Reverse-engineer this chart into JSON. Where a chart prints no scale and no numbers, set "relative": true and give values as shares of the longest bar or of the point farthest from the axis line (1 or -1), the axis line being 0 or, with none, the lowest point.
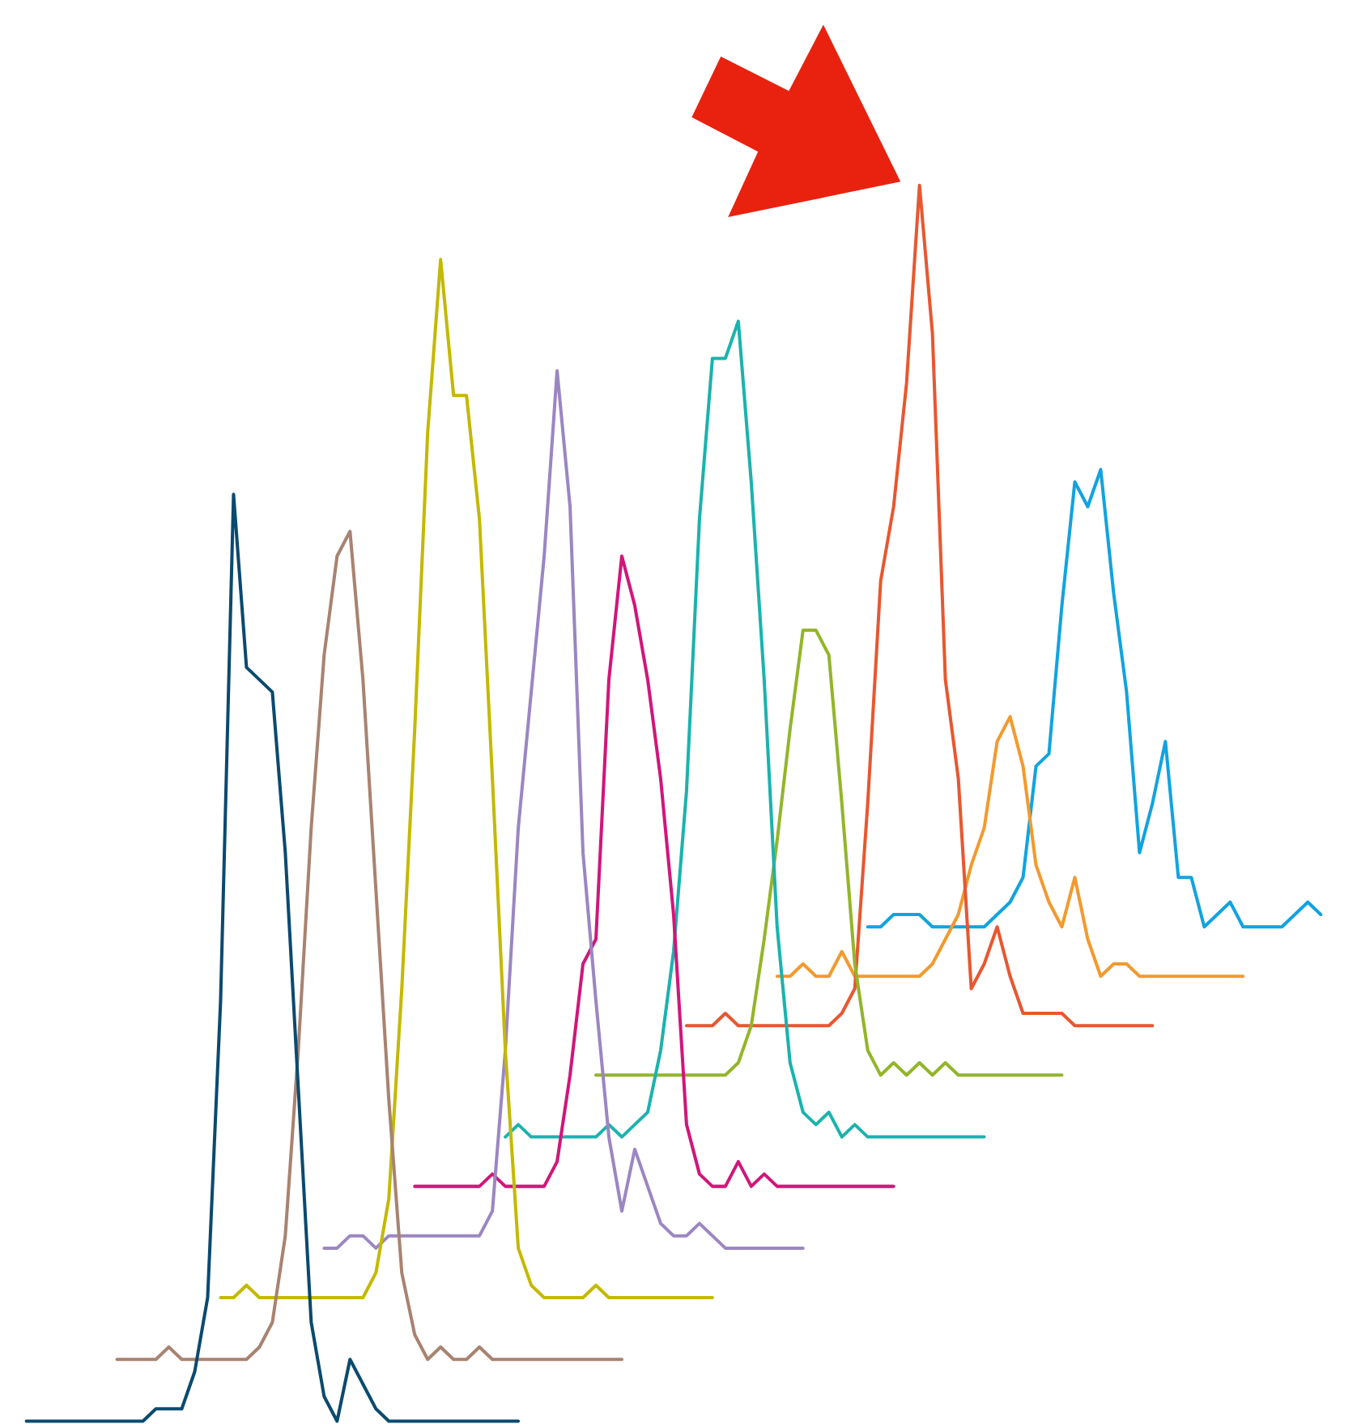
{
  "chart_data": {
    "type": "line",
    "relative": true,
    "categories": [
      null,
      null,
      null,
      null,
      null,
      null,
      null,
      null,
      null,
      null,
      null,
      null,
      null,
      null,
      null,
      null,
      null,
      null,
      null,
      null,
      null,
      null,
      null,
      null,
      null,
      null,
      null,
      null,
      null,
      null,
      null,
      null,
      null,
      null,
      null,
      null,
      null,
      null,
      null,
      null,
      null,
      null,
      null,
      null,
      null,
      null,
      null,
      null,
      null,
      null,
      null,
      null,
      null,
      null,
      null,
      null,
      null,
      null,
      null,
      null,
      null,
      null,
      null,
      null,
      null,
      null,
      null,
      null,
      null,
      null,
      null,
      null,
      null,
      null,
      null,
      null,
      null,
      null,
      null,
      null,
      null,
      null,
      null,
      null,
      null,
      null,
      null,
      null,
      null,
      null,
      null,
      null,
      null,
      null,
      null,
      null,
      null,
      null,
      null,
      null,
      null
    ],
    "series": [
      {
        "color": "#0b4a6f",
        "values": [
          0,
          0,
          0,
          0,
          0,
          0,
          0,
          0,
          0,
          0,
          0.01,
          0.01,
          0.01,
          0.04,
          0.1,
          0.34,
          0.75,
          0.61,
          0.6,
          0.59,
          0.46,
          0.27,
          0.08,
          0.02,
          0,
          0.05,
          0.03,
          0.01,
          0,
          0,
          0,
          0,
          0,
          0,
          0,
          0,
          0,
          0,
          0,
          null,
          null,
          null,
          null,
          null,
          null,
          null,
          null,
          null,
          null,
          null,
          null,
          null,
          null,
          null,
          null,
          null,
          null,
          null,
          null,
          null,
          null,
          null,
          null,
          null,
          null,
          null,
          null,
          null,
          null,
          null,
          null,
          null,
          null,
          null,
          null,
          null,
          null,
          null,
          null,
          null,
          null,
          null,
          null,
          null,
          null,
          null,
          null,
          null,
          null,
          null,
          null,
          null,
          null,
          null,
          null,
          null,
          null,
          null,
          null,
          null,
          null
        ]
      },
      {
        "color": "#a88370",
        "values": [
          null,
          null,
          null,
          null,
          null,
          null,
          null,
          0.05,
          0.05,
          0.05,
          0.05,
          0.06,
          0.05,
          0.05,
          0.05,
          0.05,
          0.05,
          0.05,
          0.06,
          0.08,
          0.15,
          0.3,
          0.48,
          0.62,
          0.7,
          0.72,
          0.6,
          0.43,
          0.26,
          0.12,
          0.07,
          0.05,
          0.06,
          0.05,
          0.05,
          0.06,
          0.05,
          0.05,
          0.05,
          0.05,
          0.05,
          0.05,
          0.05,
          0.05,
          0.05,
          0.05,
          0.05,
          null,
          null,
          null,
          null,
          null,
          null,
          null,
          null,
          null,
          null,
          null,
          null,
          null,
          null,
          null,
          null,
          null,
          null,
          null,
          null,
          null,
          null,
          null,
          null,
          null,
          null,
          null,
          null,
          null,
          null,
          null,
          null,
          null,
          null,
          null,
          null,
          null,
          null,
          null,
          null,
          null,
          null,
          null,
          null,
          null,
          null,
          null,
          null,
          null,
          null,
          null,
          null,
          null,
          null
        ]
      },
      {
        "color": "#c4b900",
        "values": [
          null,
          null,
          null,
          null,
          null,
          null,
          null,
          null,
          null,
          null,
          null,
          null,
          null,
          null,
          null,
          0.1,
          0.1,
          0.11,
          0.1,
          0.1,
          0.1,
          0.1,
          0.1,
          0.1,
          0.1,
          0.1,
          0.1,
          0.12,
          0.18,
          0.35,
          0.56,
          0.8,
          0.94,
          0.83,
          0.83,
          0.73,
          0.52,
          0.3,
          0.14,
          0.11,
          0.1,
          0.1,
          0.1,
          0.1,
          0.11,
          0.1,
          0.1,
          0.1,
          0.1,
          0.1,
          0.1,
          0.1,
          0.1,
          0.1,
          null,
          null,
          null,
          null,
          null,
          null,
          null,
          null,
          null,
          null,
          null,
          null,
          null,
          null,
          null,
          null,
          null,
          null,
          null,
          null,
          null,
          null,
          null,
          null,
          null,
          null,
          null,
          null,
          null,
          null,
          null,
          null,
          null,
          null,
          null,
          null,
          null,
          null,
          null,
          null,
          null,
          null,
          null,
          null,
          null,
          null,
          null
        ]
      },
      {
        "color": "#9b86c2",
        "values": [
          null,
          null,
          null,
          null,
          null,
          null,
          null,
          null,
          null,
          null,
          null,
          null,
          null,
          null,
          null,
          null,
          null,
          null,
          null,
          null,
          null,
          null,
          null,
          0.14,
          0.14,
          0.15,
          0.15,
          0.14,
          0.15,
          0.15,
          0.15,
          0.15,
          0.15,
          0.15,
          0.15,
          0.15,
          0.17,
          0.3,
          0.48,
          0.59,
          0.7,
          0.85,
          0.74,
          0.46,
          0.34,
          0.23,
          0.17,
          0.22,
          0.19,
          0.16,
          0.15,
          0.15,
          0.16,
          0.15,
          0.14,
          0.14,
          0.14,
          0.14,
          0.14,
          0.14,
          0.14,
          null,
          null,
          null,
          null,
          null,
          null,
          null,
          null,
          null,
          null,
          null,
          null,
          null,
          null,
          null,
          null,
          null,
          null,
          null,
          null,
          null,
          null,
          null,
          null,
          null,
          null,
          null,
          null,
          null,
          null,
          null,
          null,
          null,
          null,
          null,
          null,
          null,
          null,
          null,
          null
        ]
      },
      {
        "color": "#d1167a",
        "values": [
          null,
          null,
          null,
          null,
          null,
          null,
          null,
          null,
          null,
          null,
          null,
          null,
          null,
          null,
          null,
          null,
          null,
          null,
          null,
          null,
          null,
          null,
          null,
          null,
          null,
          null,
          null,
          null,
          null,
          null,
          0.19,
          0.19,
          0.19,
          0.19,
          0.19,
          0.19,
          0.2,
          0.19,
          0.19,
          0.19,
          0.19,
          0.21,
          0.28,
          0.37,
          0.39,
          0.6,
          0.7,
          0.66,
          0.6,
          0.52,
          0.41,
          0.24,
          0.2,
          0.19,
          0.19,
          0.21,
          0.19,
          0.2,
          0.19,
          0.19,
          0.19,
          0.19,
          0.19,
          0.19,
          0.19,
          0.19,
          0.19,
          0.19,
          null,
          null,
          null,
          null,
          null,
          null,
          null,
          null,
          null,
          null,
          null,
          null,
          null,
          null,
          null,
          null,
          null,
          null,
          null,
          null,
          null,
          null,
          null,
          null,
          null,
          null,
          null,
          null,
          null,
          null,
          null,
          null,
          null
        ]
      },
      {
        "color": "#1ab3ad",
        "values": [
          null,
          null,
          null,
          null,
          null,
          null,
          null,
          null,
          null,
          null,
          null,
          null,
          null,
          null,
          null,
          null,
          null,
          null,
          null,
          null,
          null,
          null,
          null,
          null,
          null,
          null,
          null,
          null,
          null,
          null,
          null,
          null,
          null,
          null,
          null,
          null,
          null,
          0.23,
          0.24,
          0.23,
          0.23,
          0.23,
          0.23,
          0.23,
          0.23,
          0.24,
          0.23,
          0.24,
          0.25,
          0.3,
          0.38,
          0.51,
          0.73,
          0.86,
          0.86,
          0.89,
          0.76,
          0.6,
          0.4,
          0.29,
          0.25,
          0.24,
          0.25,
          0.23,
          0.24,
          0.23,
          0.23,
          0.23,
          0.23,
          0.23,
          0.23,
          0.23,
          0.23,
          0.23,
          0.23,
          null,
          null,
          null,
          null,
          null,
          null,
          null,
          null,
          null,
          null,
          null,
          null,
          null,
          null,
          null,
          null,
          null,
          null,
          null,
          null,
          null,
          null,
          null,
          null,
          null,
          null
        ]
      },
      {
        "color": "#93b52a",
        "values": [
          null,
          null,
          null,
          null,
          null,
          null,
          null,
          null,
          null,
          null,
          null,
          null,
          null,
          null,
          null,
          null,
          null,
          null,
          null,
          null,
          null,
          null,
          null,
          null,
          null,
          null,
          null,
          null,
          null,
          null,
          null,
          null,
          null,
          null,
          null,
          null,
          null,
          null,
          null,
          null,
          null,
          null,
          null,
          null,
          0.28,
          0.28,
          0.28,
          0.28,
          0.28,
          0.28,
          0.28,
          0.28,
          0.28,
          0.28,
          0.28,
          0.29,
          0.32,
          0.39,
          0.47,
          0.56,
          0.64,
          0.64,
          0.62,
          0.5,
          0.37,
          0.3,
          0.28,
          0.29,
          0.28,
          0.29,
          0.28,
          0.29,
          0.28,
          0.28,
          0.28,
          0.28,
          0.28,
          0.28,
          0.28,
          0.28,
          0.28,
          null,
          null,
          null,
          null,
          null,
          null,
          null,
          null,
          null,
          null,
          null,
          null,
          null,
          null,
          null,
          null,
          null,
          null,
          null,
          null
        ]
      },
      {
        "color": "#e8572f",
        "values": [
          null,
          null,
          null,
          null,
          null,
          null,
          null,
          null,
          null,
          null,
          null,
          null,
          null,
          null,
          null,
          null,
          null,
          null,
          null,
          null,
          null,
          null,
          null,
          null,
          null,
          null,
          null,
          null,
          null,
          null,
          null,
          null,
          null,
          null,
          null,
          null,
          null,
          null,
          null,
          null,
          null,
          null,
          null,
          null,
          null,
          null,
          null,
          null,
          null,
          null,
          null,
          0.32,
          0.32,
          0.32,
          0.33,
          0.32,
          0.32,
          0.32,
          0.32,
          0.32,
          0.32,
          0.32,
          0.32,
          0.33,
          0.35,
          0.5,
          0.68,
          0.74,
          0.84,
          1.0,
          0.88,
          0.6,
          0.52,
          0.35,
          0.37,
          0.4,
          0.36,
          0.33,
          0.33,
          0.33,
          0.33,
          0.32,
          0.32,
          0.32,
          0.32,
          0.32,
          0.32,
          0.32,
          null,
          null,
          null,
          null,
          null,
          null,
          null,
          null,
          null,
          null,
          null,
          null,
          null
        ]
      },
      {
        "color": "#f29a2e",
        "values": [
          null,
          null,
          null,
          null,
          null,
          null,
          null,
          null,
          null,
          null,
          null,
          null,
          null,
          null,
          null,
          null,
          null,
          null,
          null,
          null,
          null,
          null,
          null,
          null,
          null,
          null,
          null,
          null,
          null,
          null,
          null,
          null,
          null,
          null,
          null,
          null,
          null,
          null,
          null,
          null,
          null,
          null,
          null,
          null,
          null,
          null,
          null,
          null,
          null,
          null,
          null,
          null,
          null,
          null,
          null,
          null,
          null,
          null,
          0.36,
          0.36,
          0.37,
          0.36,
          0.36,
          0.38,
          0.36,
          0.36,
          0.36,
          0.36,
          0.36,
          0.36,
          0.37,
          0.39,
          0.41,
          0.45,
          0.48,
          0.55,
          0.57,
          0.53,
          0.45,
          0.42,
          0.4,
          0.44,
          0.39,
          0.36,
          0.37,
          0.37,
          0.36,
          0.36,
          0.36,
          0.36,
          0.36,
          0.36,
          0.36,
          0.36,
          0.36,
          null,
          null,
          null,
          null,
          null,
          null
        ]
      },
      {
        "color": "#11a3e0",
        "values": [
          null,
          null,
          null,
          null,
          null,
          null,
          null,
          null,
          null,
          null,
          null,
          null,
          null,
          null,
          null,
          null,
          null,
          null,
          null,
          null,
          null,
          null,
          null,
          null,
          null,
          null,
          null,
          null,
          null,
          null,
          null,
          null,
          null,
          null,
          null,
          null,
          null,
          null,
          null,
          null,
          null,
          null,
          null,
          null,
          null,
          null,
          null,
          null,
          null,
          null,
          null,
          null,
          null,
          null,
          null,
          null,
          null,
          null,
          null,
          null,
          null,
          null,
          null,
          null,
          null,
          0.4,
          0.4,
          0.41,
          0.41,
          0.41,
          0.4,
          0.4,
          0.4,
          0.4,
          0.4,
          0.41,
          0.42,
          0.44,
          0.53,
          0.54,
          0.66,
          0.76,
          0.74,
          0.77,
          0.67,
          0.59,
          0.46,
          0.5,
          0.55,
          0.44,
          0.44,
          0.4,
          0.41,
          0.42,
          0.4,
          0.4,
          0.4,
          0.4,
          0.41,
          0.42,
          0.41
        ]
      }
    ]
  }
}
